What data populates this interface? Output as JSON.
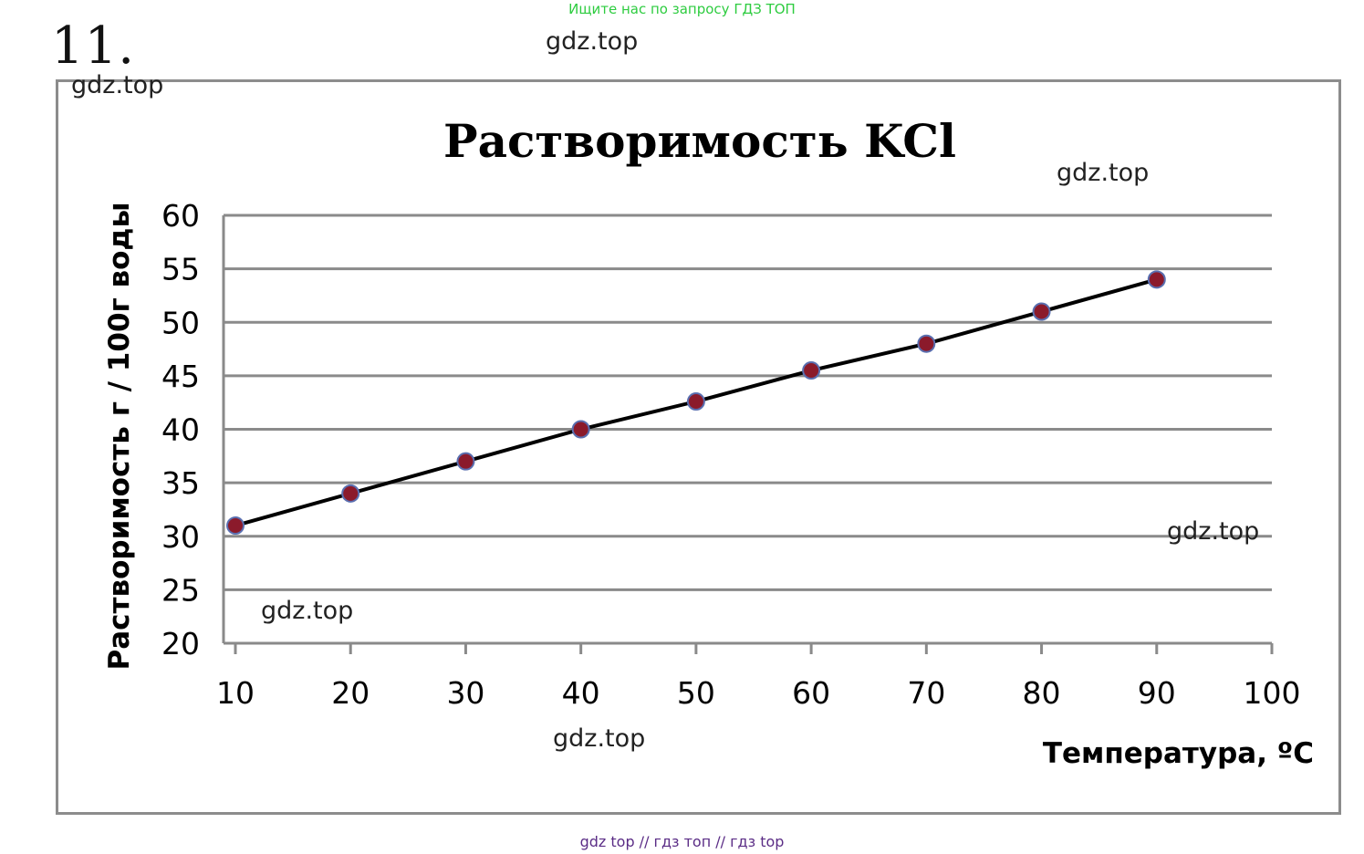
{
  "banner": "Ищите нас по запросу ГДЗ ТОП",
  "problem_number": "11.",
  "watermarks": [
    "gdz.top",
    "gdz.top",
    "gdz.top",
    "gdz.top",
    "gdz.top",
    "gdz.top"
  ],
  "footer": "gdz top  //  гдз топ  //  гдз top",
  "colors": {
    "line": "#000000",
    "marker_fill": "#8b1a2b",
    "marker_stroke": "#5a6fb0",
    "grid": "#8a8a8a",
    "frame": "#8c8c8c",
    "banner": "#2ecc40",
    "footer": "#5b2d86"
  },
  "chart_data": {
    "type": "line",
    "title": "Растворимость KCl",
    "xlabel": "Температура, ºС",
    "ylabel": "Растворимость г  / 100г воды",
    "x": [
      10,
      20,
      30,
      40,
      50,
      60,
      70,
      80,
      90
    ],
    "series": [
      {
        "values": [
          31,
          34,
          37,
          40,
          42.6,
          45.5,
          48,
          51,
          54
        ]
      }
    ],
    "xlim": [
      10,
      100
    ],
    "ylim": [
      20,
      60
    ],
    "xticks": [
      "10",
      "20",
      "30",
      "40",
      "50",
      "60",
      "70",
      "80",
      "90",
      "100"
    ],
    "yticks": [
      "20",
      "25",
      "30",
      "35",
      "40",
      "45",
      "50",
      "55",
      "60"
    ],
    "grid": "horizontal",
    "markers": "circle"
  }
}
